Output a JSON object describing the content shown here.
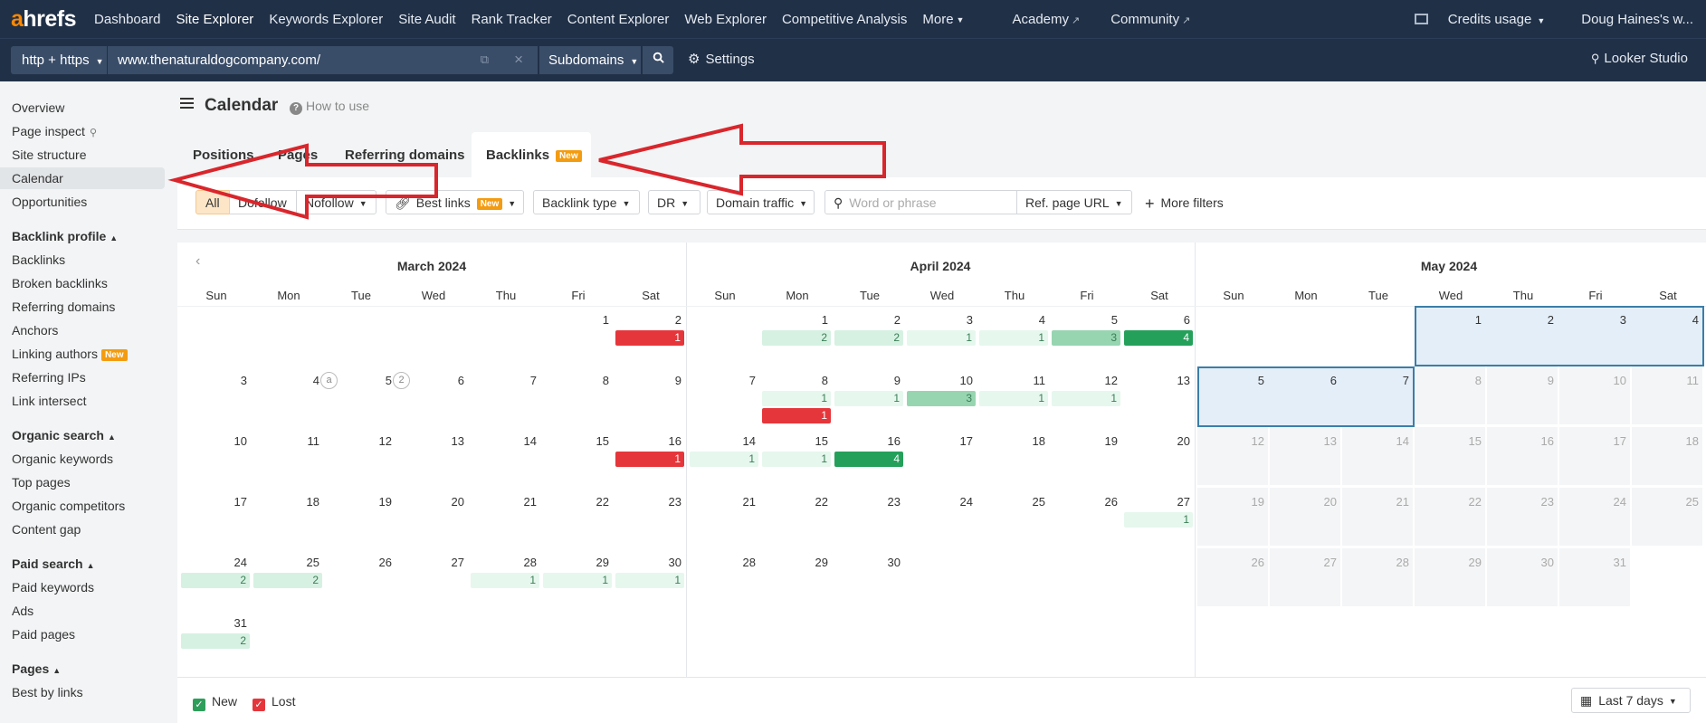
{
  "topbar": {
    "logo_a": "a",
    "logo_rest": "hrefs",
    "nav": [
      {
        "label": "Dashboard"
      },
      {
        "label": "Site Explorer"
      },
      {
        "label": "Keywords Explorer"
      },
      {
        "label": "Site Audit"
      },
      {
        "label": "Rank Tracker"
      },
      {
        "label": "Content Explorer"
      },
      {
        "label": "Web Explorer"
      },
      {
        "label": "Competitive Analysis"
      },
      {
        "label": "More"
      },
      {
        "label": "Academy"
      },
      {
        "label": "Community"
      }
    ],
    "credits": "Credits usage",
    "user": "Doug Haines's w..."
  },
  "searchbar": {
    "protocol": "http + https",
    "url": "www.thenaturaldogcompany.com/",
    "mode": "Subdomains",
    "settings": "Settings",
    "looker": "Looker Studio"
  },
  "sidebar": {
    "items": [
      {
        "label": "Overview"
      },
      {
        "label": "Page inspect"
      },
      {
        "label": "Site structure"
      },
      {
        "label": "Calendar"
      },
      {
        "label": "Opportunities"
      }
    ],
    "sections": [
      {
        "title": "Backlink profile",
        "items": [
          "Backlinks",
          "Broken backlinks",
          "Referring domains",
          "Anchors",
          "Linking authors",
          "Referring IPs",
          "Link intersect"
        ]
      },
      {
        "title": "Organic search",
        "items": [
          "Organic keywords",
          "Top pages",
          "Organic competitors",
          "Content gap"
        ]
      },
      {
        "title": "Paid search",
        "items": [
          "Paid keywords",
          "Ads",
          "Paid pages"
        ]
      },
      {
        "title": "Pages",
        "items": [
          "Best by links"
        ]
      }
    ],
    "new_badge": "New"
  },
  "page": {
    "title": "Calendar",
    "howto": "How to use"
  },
  "tabs": [
    {
      "label": "Positions"
    },
    {
      "label": "Pages"
    },
    {
      "label": "Referring domains"
    },
    {
      "label": "Backlinks"
    }
  ],
  "tab_badge": "New",
  "filters": {
    "all": "All",
    "dofollow": "Dofollow",
    "nofollow": "Nofollow",
    "best_links": "Best links",
    "best_badge": "New",
    "backlink_type": "Backlink type",
    "dr": "DR",
    "domain_traffic": "Domain traffic",
    "search_placeholder": "Word or phrase",
    "ref_page_url": "Ref. page URL",
    "more_filters": "More filters"
  },
  "calendar": {
    "weekdays": [
      "Sun",
      "Mon",
      "Tue",
      "Wed",
      "Thu",
      "Fri",
      "Sat"
    ],
    "months": [
      {
        "title": "March 2024",
        "start": 5,
        "days": 31
      },
      {
        "title": "April 2024",
        "start": 1,
        "days": 30
      },
      {
        "title": "May 2024",
        "start": 3,
        "days": 31
      }
    ],
    "events": [
      {
        "month": 0,
        "day": 2,
        "kind": "lost",
        "value": 1
      },
      {
        "month": 0,
        "day": 16,
        "kind": "lost",
        "value": 1
      },
      {
        "month": 0,
        "day": 24,
        "kind": "new",
        "value": 2
      },
      {
        "month": 0,
        "day": 25,
        "kind": "new",
        "value": 2
      },
      {
        "month": 0,
        "day": 28,
        "kind": "new",
        "value": 1
      },
      {
        "month": 0,
        "day": 29,
        "kind": "new",
        "value": 1
      },
      {
        "month": 0,
        "day": 30,
        "kind": "new",
        "value": 1
      },
      {
        "month": 0,
        "day": 31,
        "kind": "new",
        "value": 2
      },
      {
        "month": 1,
        "day": 1,
        "kind": "new",
        "value": 2
      },
      {
        "month": 1,
        "day": 2,
        "kind": "new",
        "value": 2
      },
      {
        "month": 1,
        "day": 3,
        "kind": "new",
        "value": 1
      },
      {
        "month": 1,
        "day": 4,
        "kind": "new",
        "value": 1
      },
      {
        "month": 1,
        "day": 5,
        "kind": "new",
        "value": 3
      },
      {
        "month": 1,
        "day": 6,
        "kind": "new",
        "value": 4
      },
      {
        "month": 1,
        "day": 8,
        "kind": "new",
        "value": 1
      },
      {
        "month": 1,
        "day": 8,
        "kind": "lost",
        "value": 1
      },
      {
        "month": 1,
        "day": 9,
        "kind": "new",
        "value": 1
      },
      {
        "month": 1,
        "day": 10,
        "kind": "new",
        "value": 3
      },
      {
        "month": 1,
        "day": 11,
        "kind": "new",
        "value": 1
      },
      {
        "month": 1,
        "day": 12,
        "kind": "new",
        "value": 1
      },
      {
        "month": 1,
        "day": 14,
        "kind": "new",
        "value": 1
      },
      {
        "month": 1,
        "day": 15,
        "kind": "new",
        "value": 1
      },
      {
        "month": 1,
        "day": 16,
        "kind": "new",
        "value": 4
      },
      {
        "month": 1,
        "day": 27,
        "kind": "new",
        "value": 1
      }
    ],
    "markers": [
      {
        "month": 0,
        "day": 4,
        "label": "a"
      },
      {
        "month": 0,
        "day": 5,
        "label": "2"
      }
    ],
    "highlight": {
      "month": 2,
      "from": 1,
      "to": 7
    },
    "future_from": {
      "month": 2,
      "day": 8
    }
  },
  "legend": {
    "new": "New",
    "lost": "Lost",
    "range": "Last 7 days"
  },
  "colors": {
    "topbar": "#203047",
    "lost": "#e5373b",
    "new_1": "#e6f7ee",
    "new_2": "#d6f1e2",
    "new_3": "#97d5b1",
    "new_4": "#25a05b",
    "highlight": "#e4eef8",
    "highlight_border": "#3b7ea8",
    "arrow": "#d9262c"
  }
}
